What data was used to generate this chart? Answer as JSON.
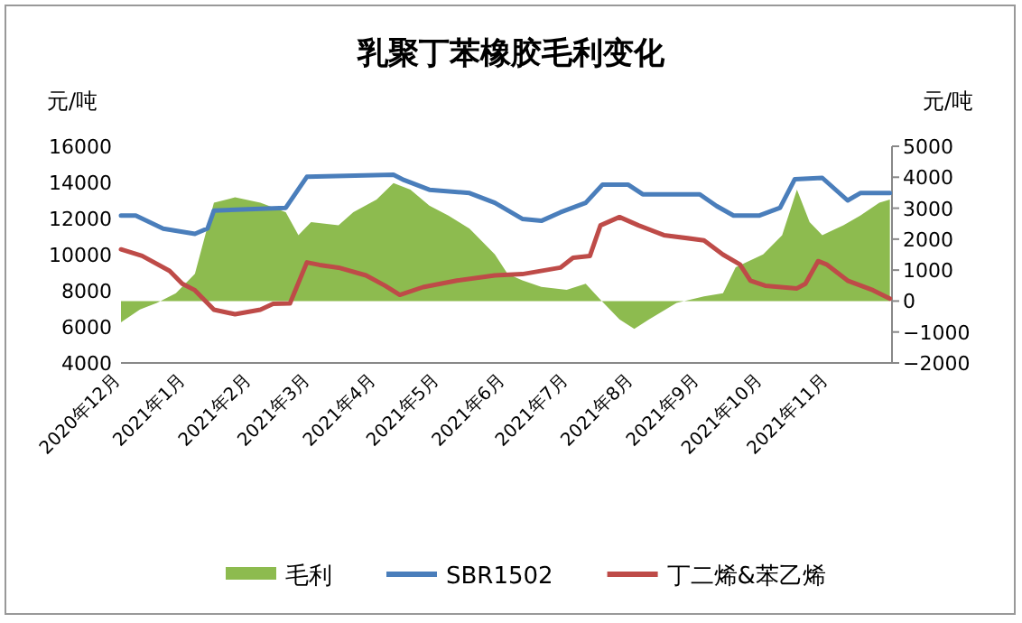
{
  "chart_data": {
    "type": "line",
    "title": "乳聚丁苯橡胶毛利变化",
    "ylabel": "元/吨",
    "y2label": "元/吨",
    "legend": "bottom",
    "xlim": [
      "2020-12-01",
      "2021-12-01"
    ],
    "xticks": [
      {
        "value": "2020-12-01",
        "label": "2020年12月"
      },
      {
        "value": "2021-01-01",
        "label": "2021年1月"
      },
      {
        "value": "2021-02-01",
        "label": "2021年2月"
      },
      {
        "value": "2021-03-01",
        "label": "2021年3月"
      },
      {
        "value": "2021-04-01",
        "label": "2021年4月"
      },
      {
        "value": "2021-05-01",
        "label": "2021年5月"
      },
      {
        "value": "2021-06-01",
        "label": "2021年6月"
      },
      {
        "value": "2021-07-01",
        "label": "2021年7月"
      },
      {
        "value": "2021-08-01",
        "label": "2021年8月"
      },
      {
        "value": "2021-09-01",
        "label": "2021年9月"
      },
      {
        "value": "2021-10-01",
        "label": "2021年10月"
      },
      {
        "value": "2021-11-01",
        "label": "2021年11月"
      }
    ],
    "ylim": [
      4000,
      16000
    ],
    "yticks": [
      4000,
      6000,
      8000,
      10000,
      12000,
      14000,
      16000
    ],
    "y2lim": [
      -2000,
      5000
    ],
    "y2ticks": [
      -2000,
      -1000,
      0,
      1000,
      2000,
      3000,
      4000,
      5000
    ],
    "series": [
      {
        "name": "毛利",
        "type": "area",
        "axis": "y2",
        "color": "#8dbb4f",
        "x": [
          "2020-12-01",
          "2020-12-10",
          "2020-12-18",
          "2020-12-27",
          "2021-01-05",
          "2021-01-14",
          "2021-01-24",
          "2021-02-05",
          "2021-02-17",
          "2021-02-23",
          "2021-03-01",
          "2021-03-14",
          "2021-03-21",
          "2021-04-01",
          "2021-04-09",
          "2021-04-17",
          "2021-04-26",
          "2021-05-05",
          "2021-05-15",
          "2021-05-27",
          "2021-06-02",
          "2021-06-09",
          "2021-06-18",
          "2021-06-30",
          "2021-07-09",
          "2021-07-16",
          "2021-07-25",
          "2021-08-01",
          "2021-08-08",
          "2021-08-21",
          "2021-09-03",
          "2021-09-12",
          "2021-09-18",
          "2021-10-01",
          "2021-10-10",
          "2021-10-17",
          "2021-10-23",
          "2021-10-29",
          "2021-11-08",
          "2021-11-16",
          "2021-11-25",
          "2021-11-30"
        ],
        "values": [
          -690,
          -270,
          -60,
          250,
          880,
          3180,
          3350,
          3180,
          2870,
          2130,
          2550,
          2450,
          2870,
          3280,
          3810,
          3600,
          3080,
          2760,
          2340,
          1510,
          880,
          670,
          460,
          360,
          560,
          40,
          -590,
          -900,
          -590,
          -60,
          150,
          250,
          1090,
          1510,
          2130,
          3600,
          2550,
          2130,
          2450,
          2760,
          3180,
          3280
        ]
      },
      {
        "name": "SBR1502",
        "color": "#4a7ebb",
        "x": [
          "2020-12-01",
          "2020-12-08",
          "2020-12-21",
          "2021-01-05",
          "2021-01-11",
          "2021-01-14",
          "2021-02-17",
          "2021-02-27",
          "2021-04-09",
          "2021-04-14",
          "2021-04-26",
          "2021-05-15",
          "2021-05-27",
          "2021-06-09",
          "2021-06-18",
          "2021-06-27",
          "2021-07-09",
          "2021-07-17",
          "2021-07-29",
          "2021-08-05",
          "2021-09-01",
          "2021-09-09",
          "2021-09-17",
          "2021-09-29",
          "2021-10-09",
          "2021-10-16",
          "2021-10-29",
          "2021-11-10",
          "2021-11-16",
          "2021-11-30"
        ],
        "values": [
          12160,
          12160,
          11440,
          11150,
          11450,
          12440,
          12590,
          14310,
          14420,
          14130,
          13590,
          13410,
          12870,
          11980,
          11870,
          12340,
          12870,
          13880,
          13880,
          13340,
          13340,
          12690,
          12160,
          12160,
          12590,
          14180,
          14250,
          13000,
          13410,
          13410
        ]
      },
      {
        "name": "丁二烯&苯乙烯",
        "color": "#be4b48",
        "x": [
          "2020-12-01",
          "2020-12-11",
          "2020-12-24",
          "2020-12-30",
          "2021-01-05",
          "2021-01-14",
          "2021-01-24",
          "2021-02-05",
          "2021-02-11",
          "2021-02-19",
          "2021-02-27",
          "2021-03-05",
          "2021-03-14",
          "2021-03-27",
          "2021-04-05",
          "2021-04-12",
          "2021-04-23",
          "2021-05-09",
          "2021-05-27",
          "2021-06-09",
          "2021-06-27",
          "2021-07-03",
          "2021-07-11",
          "2021-07-16",
          "2021-07-25",
          "2021-08-03",
          "2021-08-15",
          "2021-09-03",
          "2021-09-12",
          "2021-09-20",
          "2021-09-25",
          "2021-10-02",
          "2021-10-17",
          "2021-10-21",
          "2021-10-27",
          "2021-10-31",
          "2021-11-10",
          "2021-11-22",
          "2021-11-30"
        ],
        "values": [
          10290,
          9930,
          9100,
          8390,
          8030,
          6950,
          6700,
          6950,
          7270,
          7300,
          9570,
          9430,
          9280,
          8850,
          8280,
          7770,
          8200,
          8560,
          8850,
          8920,
          9280,
          9820,
          9930,
          11620,
          12080,
          11620,
          11080,
          10790,
          10000,
          9460,
          8560,
          8280,
          8130,
          8390,
          9640,
          9460,
          8560,
          8030,
          7560
        ]
      }
    ]
  }
}
